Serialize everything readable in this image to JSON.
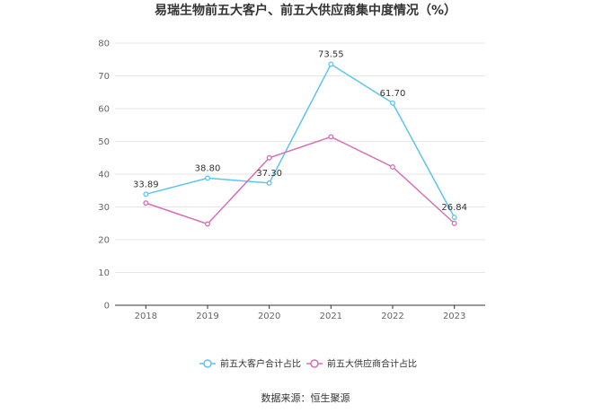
{
  "chart_data": {
    "type": "line",
    "title": "易瑞生物前五大客户、前五大供应商集中度情况（%）",
    "categories": [
      "2018",
      "2019",
      "2020",
      "2021",
      "2022",
      "2023"
    ],
    "ylim": [
      0,
      80
    ],
    "yticks": [
      "0",
      "10",
      "20",
      "30",
      "40",
      "50",
      "60",
      "70",
      "80"
    ],
    "grid": true,
    "legend_position": "bottom",
    "series": [
      {
        "name": "前五大客户合计占比",
        "color": "#5bc4ef",
        "values": [
          33.89,
          38.8,
          37.3,
          73.55,
          61.7,
          26.84
        ],
        "labels": [
          "33.89",
          "38.80",
          "37.30",
          "73.55",
          "61.70",
          "26.84"
        ]
      },
      {
        "name": "前五大供应商合计占比",
        "color": "#d66fb7",
        "values": [
          31.2,
          24.8,
          45.0,
          51.4,
          42.2,
          25.0
        ],
        "labels": []
      }
    ]
  },
  "source": "数据来源：恒生聚源"
}
